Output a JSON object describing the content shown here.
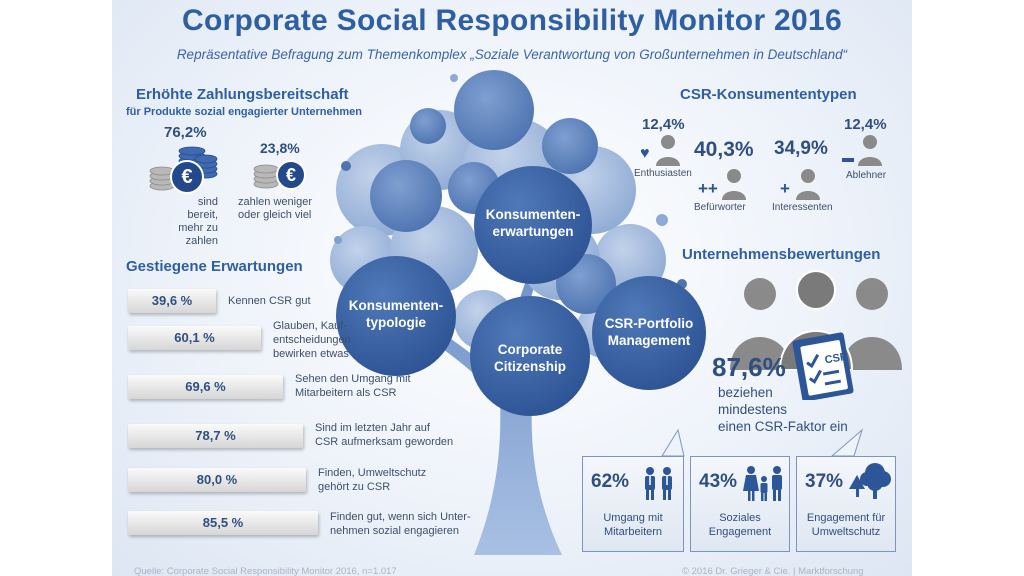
{
  "title": "Corporate Social Responsibility Monitor 2016",
  "subtitle": "Repräsentative Befragung zum Themenkomplex „Soziale Verantwortung von Großunternehmen in Deutschland“",
  "payment": {
    "heading": "Erhöhte Zahlungsbereitschaft",
    "subheading": "für Produkte sozial engagierter Unternehmen",
    "yes_pct": "76,2%",
    "yes_text": [
      "sind bereit,",
      "mehr zu zahlen"
    ],
    "no_pct": "23,8%",
    "no_text": [
      "zahlen weniger",
      "oder gleich viel"
    ],
    "currency_symbol": "€"
  },
  "expectations": {
    "heading": "Gestiegene Erwartungen",
    "items": [
      {
        "value": "39,6 %",
        "fraction": 0.396,
        "label": [
          "Kennen CSR gut"
        ]
      },
      {
        "value": "60,1 %",
        "fraction": 0.601,
        "label": [
          "Glauben, Kauf-",
          "entscheidungen",
          "bewirken etwas"
        ]
      },
      {
        "value": "69,6 %",
        "fraction": 0.696,
        "label": [
          "Sehen den Umgang mit",
          "Mitarbeitern als CSR"
        ]
      },
      {
        "value": "78,7 %",
        "fraction": 0.787,
        "label": [
          "Sind im letzten Jahr auf",
          "CSR aufmerksam geworden"
        ]
      },
      {
        "value": "80,0 %",
        "fraction": 0.8,
        "label": [
          "Finden, Umweltschutz",
          "gehört zu CSR"
        ]
      },
      {
        "value": "85,5 %",
        "fraction": 0.855,
        "label": [
          "Finden gut, wenn sich Unter-",
          "nehmen sozial engagieren"
        ]
      }
    ]
  },
  "tree": {
    "leaves": [
      [
        "Konsumenten-",
        "erwartungen"
      ],
      [
        "Konsumenten-",
        "typologie"
      ],
      [
        "Corporate",
        "Citizenship"
      ],
      [
        "CSR-Portfolio",
        "Management"
      ]
    ]
  },
  "types": {
    "heading": "CSR-Konsumententypen",
    "items": [
      {
        "pct": "12,4%",
        "label": "Enthusiasten"
      },
      {
        "pct": "40,3%",
        "label": "Befürworter"
      },
      {
        "pct": "34,9%",
        "label": "Interessenten"
      },
      {
        "pct": "12,4%",
        "label": "Ablehner"
      }
    ]
  },
  "ratings": {
    "heading": "Unternehmensbewertungen",
    "pct": "87,6%",
    "text": [
      "beziehen",
      "mindestens",
      "einen CSR-Faktor ein"
    ],
    "badge": "CSR",
    "callouts": [
      {
        "pct": "62%",
        "text": [
          "Umgang mit",
          "Mitarbeitern"
        ],
        "icon": "employees-icon"
      },
      {
        "pct": "43%",
        "text": [
          "Soziales",
          "Engagement"
        ],
        "icon": "family-icon"
      },
      {
        "pct": "37%",
        "text": [
          "Engagement für",
          "Umweltschutz"
        ],
        "icon": "trees-icon"
      }
    ]
  },
  "footer": {
    "source": "Quelle: Corporate Social Responsibility Monitor 2016, n=1.017",
    "copyright": "© 2016 Dr. Grieger & Cie. | Marktforschung"
  },
  "colors": {
    "accent": "#2e5fa3",
    "leaf_dark": "#2c5697",
    "leaf_mid": "#5279b5",
    "leaf_light": "#9fb6d9",
    "trunk": "#7f9fd0",
    "person": "#8a8a8a"
  }
}
